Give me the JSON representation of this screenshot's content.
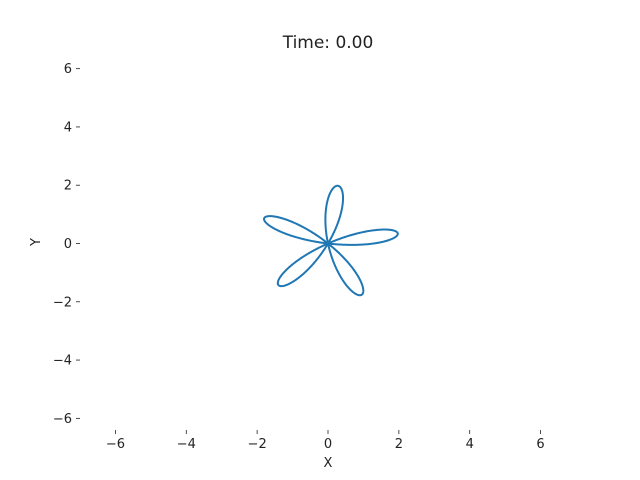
{
  "chart_data": {
    "type": "line",
    "title": "Time: 0.00",
    "xlabel": "X",
    "ylabel": "Y",
    "xlim": [
      -7,
      7
    ],
    "ylim": [
      -6.4,
      6.4
    ],
    "xticks": [
      -6,
      -4,
      -2,
      0,
      2,
      4,
      6
    ],
    "yticks": [
      -6,
      -4,
      -2,
      0,
      2,
      4,
      6
    ],
    "xtick_labels": [
      "−6",
      "−4",
      "−2",
      "0",
      "2",
      "4",
      "6"
    ],
    "ytick_labels": [
      "−6",
      "−4",
      "−2",
      "0",
      "2",
      "4",
      "6"
    ],
    "grid": false,
    "series": [
      {
        "curve": "rose",
        "petals": 5,
        "amplitude": 2.0,
        "rotation_deg": 10,
        "color": "#1f77b4"
      }
    ]
  }
}
